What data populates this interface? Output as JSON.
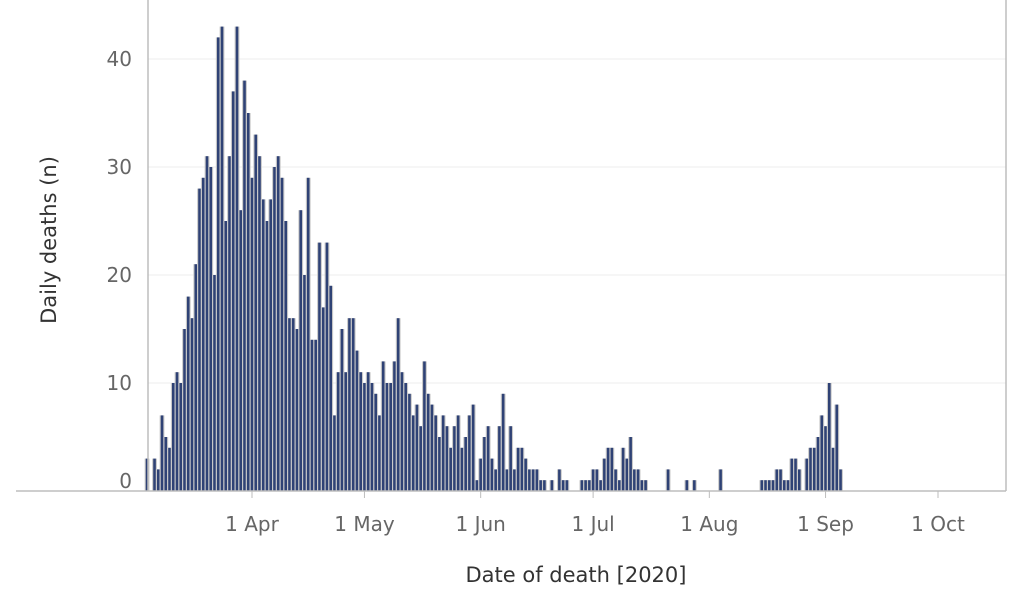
{
  "chart_data": {
    "type": "bar",
    "title": "",
    "xlabel": "Date of death [2020]",
    "ylabel": "Daily deaths (n)",
    "ylim": [
      0,
      45
    ],
    "y_ticks": [
      0,
      10,
      20,
      30,
      40
    ],
    "x_ticks": [
      {
        "label": "1 Apr",
        "day": 31
      },
      {
        "label": "1 May",
        "day": 61
      },
      {
        "label": "1 Jun",
        "day": 92
      },
      {
        "label": "1 Jul",
        "day": 122
      },
      {
        "label": "1 Aug",
        "day": 153
      },
      {
        "label": "1 Sep",
        "day": 184
      },
      {
        "label": "1 Oct",
        "day": 214
      }
    ],
    "x_range_days": [
      -7,
      230
    ],
    "x_day_zero": "2020-03-01",
    "colors": {
      "navy": "#2f4275",
      "grey": "#c9c9c9"
    },
    "series": [
      {
        "name": "Daily deaths",
        "start_day": 3,
        "values": [
          3,
          0,
          3,
          2,
          7,
          5,
          4,
          10,
          11,
          10,
          15,
          18,
          16,
          21,
          28,
          29,
          31,
          30,
          20,
          42,
          43,
          25,
          31,
          37,
          43,
          26,
          38,
          35,
          29,
          33,
          31,
          27,
          25,
          27,
          30,
          31,
          29,
          25,
          16,
          16,
          15,
          26,
          20,
          29,
          14,
          14,
          23,
          17,
          23,
          19,
          7,
          11,
          15,
          11,
          16,
          16,
          13,
          11,
          10,
          11,
          10,
          9,
          7,
          12,
          10,
          10,
          12,
          16,
          11,
          10,
          9,
          7,
          8,
          6,
          12,
          9,
          8,
          7,
          5,
          7,
          6,
          4,
          6,
          7,
          4,
          5,
          7,
          8,
          1,
          3,
          5,
          6,
          3,
          2,
          6,
          9,
          2,
          6,
          2,
          4,
          4,
          3,
          2,
          2,
          2,
          1,
          1,
          0,
          1,
          0,
          2,
          1,
          1,
          0,
          0,
          0,
          1,
          1,
          1,
          2,
          2,
          1,
          3,
          4,
          4,
          2,
          1,
          4,
          3,
          5,
          2,
          2,
          1,
          1,
          0,
          0,
          0,
          0,
          0,
          2,
          0,
          0,
          0,
          0,
          1,
          0,
          1,
          0,
          0,
          0,
          0,
          0,
          0,
          2,
          0,
          0,
          0,
          0,
          0,
          0,
          0,
          0,
          0,
          0,
          1,
          1,
          1,
          1,
          2,
          2,
          1,
          1,
          3,
          3,
          2,
          0,
          3,
          4,
          4,
          5,
          7,
          6,
          10,
          4,
          8,
          2
        ]
      }
    ]
  }
}
